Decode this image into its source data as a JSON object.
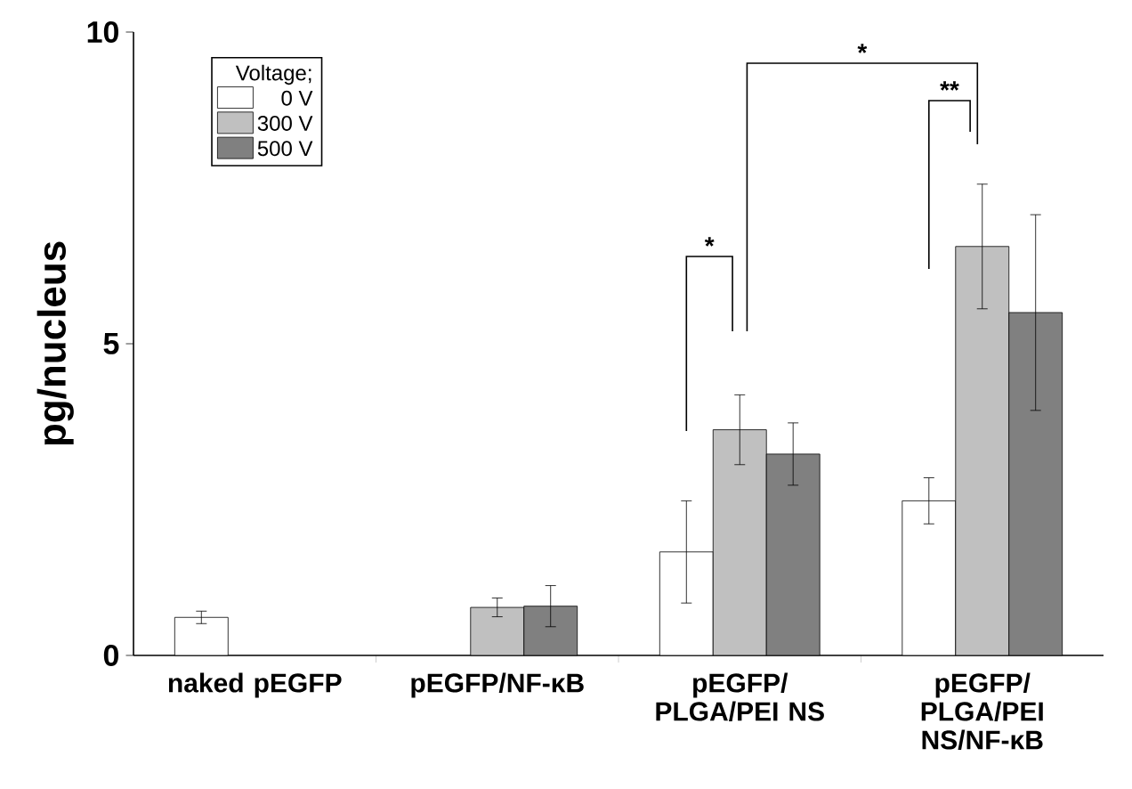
{
  "chart_data": {
    "type": "bar",
    "ylabel": "pg/nucleus",
    "legend_title": "Voltage;",
    "legend": "top left",
    "categories": [
      "naked pEGFP",
      "pEGFP/NF-κB",
      "pEGFP/PLGA/PEI NS",
      "pEGFP/PLGA/PEI NS/NF-κB"
    ],
    "series": [
      {
        "name": "0 V",
        "color": "#ffffff",
        "values": [
          0.61,
          null,
          1.66,
          2.48
        ],
        "errors": [
          0.1,
          null,
          0.82,
          0.37
        ]
      },
      {
        "name": "300 V",
        "color": "#c0c0c0",
        "values": [
          null,
          0.77,
          3.62,
          6.56
        ],
        "errors": [
          null,
          0.15,
          0.56,
          1.0
        ]
      },
      {
        "name": "500 V",
        "color": "#808080",
        "values": [
          null,
          0.79,
          3.23,
          5.5
        ],
        "errors": [
          null,
          0.33,
          0.5,
          1.57
        ]
      }
    ],
    "ylim": [
      0,
      10
    ],
    "yticks": [
      0,
      5,
      10
    ],
    "annotations": [
      "*",
      "*",
      "**"
    ]
  }
}
